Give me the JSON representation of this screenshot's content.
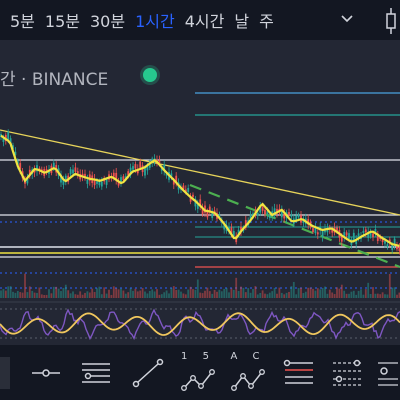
{
  "timeframes": [
    "5분",
    "15분",
    "30분",
    "1시간",
    "4시간",
    "날",
    "주"
  ],
  "active_timeframe": "1시간",
  "symbol": {
    "label": "간 · BINANCE",
    "status_color": "#26c98e"
  },
  "colors": {
    "background": "#131722",
    "chart_background": "#232734",
    "candle_up": "#26a69a",
    "candle_down": "#ef5350",
    "moving_average": "#f0e442",
    "trendline": "#e6d35a",
    "dashed_trend": "#4caf50",
    "indicator_fast": "#7e57c2",
    "indicator_slow": "#f0c75e",
    "accent": "#2962ff"
  },
  "toolbar": {
    "tools": [
      {
        "name": "horizontal-line-tool"
      },
      {
        "name": "horizontal-ray-tool"
      },
      {
        "name": "fib-retracement-tool"
      },
      {
        "name": "trend-line-tool"
      },
      {
        "name": "pattern-15-tool",
        "label": "1 5"
      },
      {
        "name": "pattern-ac-tool",
        "label": "A C"
      },
      {
        "name": "parallel-channel-tool"
      },
      {
        "name": "fib-extension-tool"
      },
      {
        "name": "chart-settings-tool"
      }
    ]
  }
}
